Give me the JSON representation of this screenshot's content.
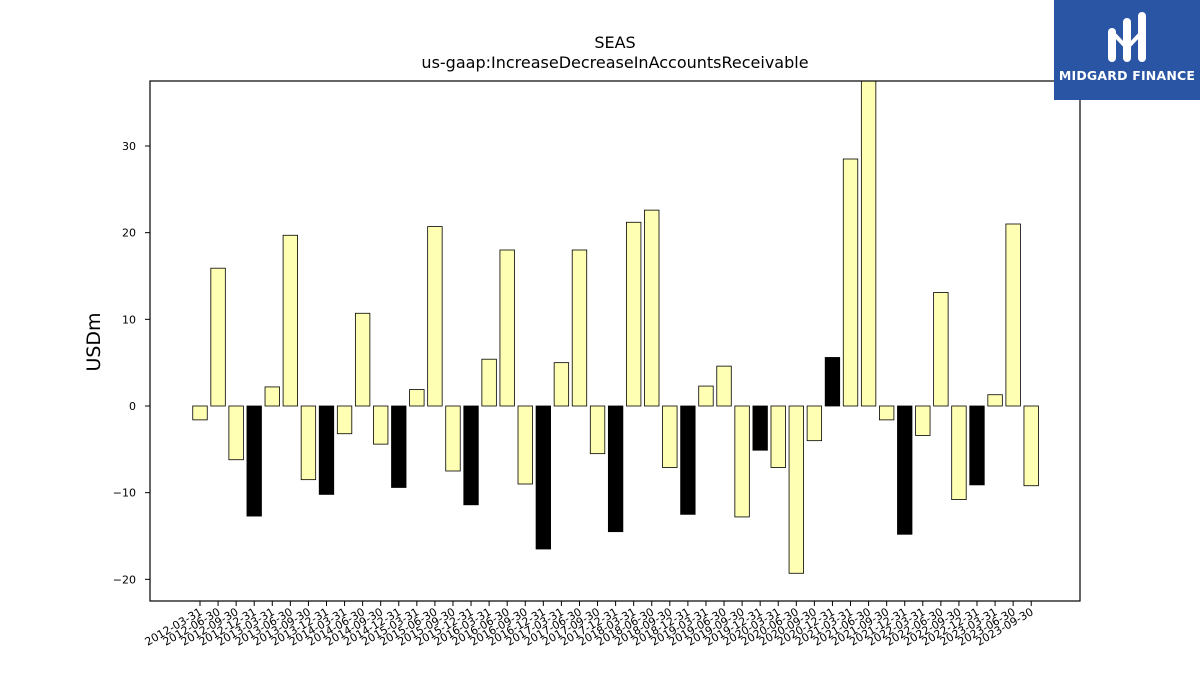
{
  "logo": {
    "text": "MIDGARD FINANCE"
  },
  "chart_data": {
    "type": "bar",
    "title": "SEAS",
    "subtitle": "us-gaap:IncreaseDecreaseInAccountsReceivable",
    "xlabel": "",
    "ylabel": "USDm",
    "ylim": [
      -22.5,
      37.5
    ],
    "yticks": [
      -20,
      -10,
      0,
      10,
      20,
      30
    ],
    "grid": false,
    "colors": {
      "default": "#ffffb3",
      "highlight": "#000000"
    },
    "categories": [
      "2012-03-31",
      "2012-06-30",
      "2012-09-30",
      "2012-12-31",
      "2013-03-31",
      "2013-06-30",
      "2013-09-30",
      "2013-12-31",
      "2014-03-31",
      "2014-06-30",
      "2014-09-30",
      "2014-12-31",
      "2015-03-31",
      "2015-06-30",
      "2015-09-30",
      "2015-12-31",
      "2016-03-31",
      "2016-06-30",
      "2016-09-30",
      "2016-12-31",
      "2017-03-31",
      "2017-06-30",
      "2017-09-30",
      "2017-12-31",
      "2018-03-31",
      "2018-06-30",
      "2018-09-30",
      "2018-12-31",
      "2019-03-31",
      "2019-06-30",
      "2019-09-30",
      "2019-12-31",
      "2020-03-31",
      "2020-06-30",
      "2020-09-30",
      "2020-12-31",
      "2021-03-31",
      "2021-06-30",
      "2021-09-30",
      "2021-12-31",
      "2022-03-31",
      "2022-06-30",
      "2022-09-30",
      "2022-12-31",
      "2023-03-31",
      "2023-06-30",
      "2023-09-30"
    ],
    "values": [
      -1.6,
      15.9,
      -6.2,
      -12.7,
      2.2,
      19.7,
      -8.5,
      -10.2,
      -3.2,
      10.7,
      -4.4,
      -9.4,
      1.9,
      20.7,
      -7.5,
      -11.4,
      5.4,
      18.0,
      -9.0,
      -16.5,
      5.0,
      18.0,
      -5.5,
      -14.5,
      21.2,
      22.6,
      -7.1,
      -12.5,
      2.3,
      4.6,
      -12.8,
      -5.1,
      -7.1,
      -19.3,
      -4.0,
      5.6,
      28.5,
      38.0,
      -1.6,
      -14.8,
      -3.4,
      13.1,
      -10.8,
      -9.1,
      1.3,
      21.0,
      -9.2
    ],
    "highlight": [
      false,
      false,
      false,
      true,
      false,
      false,
      false,
      true,
      false,
      false,
      false,
      true,
      false,
      false,
      false,
      true,
      false,
      false,
      false,
      true,
      false,
      false,
      false,
      true,
      false,
      false,
      false,
      true,
      false,
      false,
      false,
      true,
      false,
      false,
      false,
      true,
      false,
      false,
      false,
      true,
      false,
      false,
      false,
      true,
      false,
      false,
      false
    ]
  }
}
